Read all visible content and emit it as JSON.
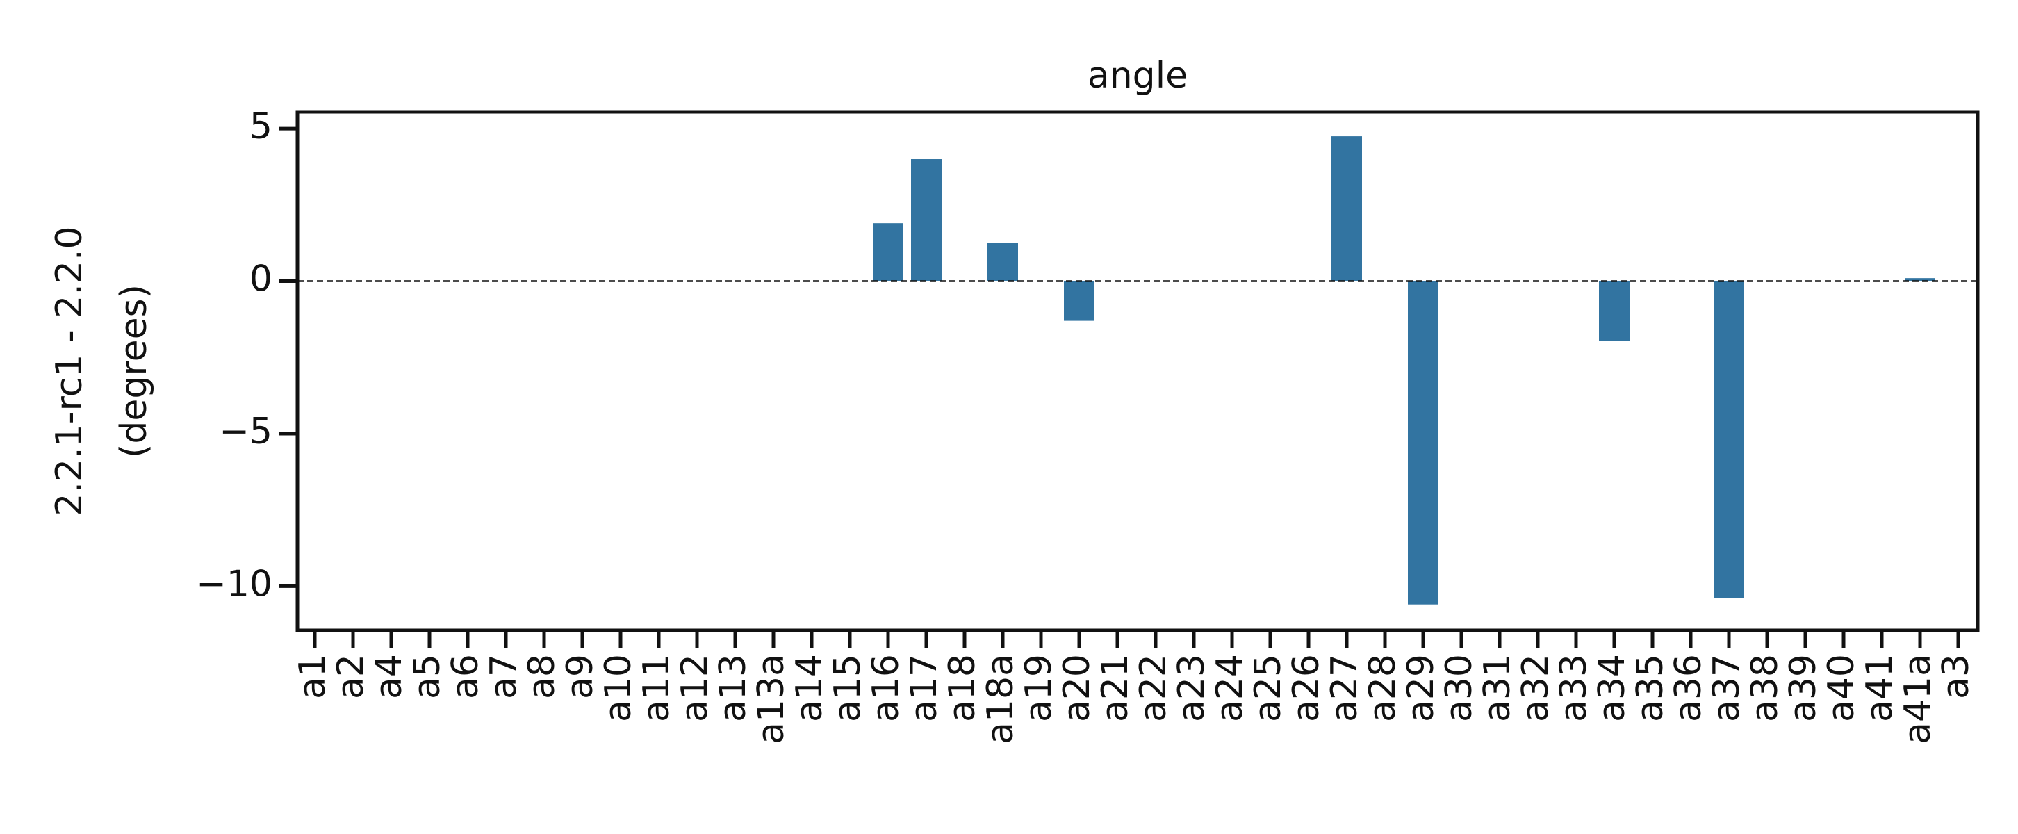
{
  "chart_data": {
    "type": "bar",
    "title": "angle",
    "ylabel": [
      "2.2.1-rc1 - 2.2.0",
      "(degrees)"
    ],
    "categories": [
      "a1",
      "a2",
      "a4",
      "a5",
      "a6",
      "a7",
      "a8",
      "a9",
      "a10",
      "a11",
      "a12",
      "a13",
      "a13a",
      "a14",
      "a15",
      "a16",
      "a17",
      "a18",
      "a18a",
      "a19",
      "a20",
      "a21",
      "a22",
      "a23",
      "a24",
      "a25",
      "a26",
      "a27",
      "a28",
      "a29",
      "a30",
      "a31",
      "a32",
      "a33",
      "a34",
      "a35",
      "a36",
      "a37",
      "a38",
      "a39",
      "a40",
      "a41",
      "a41a",
      "a3"
    ],
    "values": [
      0,
      0,
      0,
      0,
      0,
      0,
      0,
      0,
      0,
      0,
      0,
      0,
      0,
      0,
      0,
      1.9,
      4.0,
      0,
      1.25,
      0,
      -1.3,
      0,
      0,
      0,
      0,
      0,
      0,
      4.75,
      0,
      -10.6,
      0,
      0,
      0,
      0,
      -1.95,
      0,
      0,
      -10.4,
      0,
      0,
      0,
      0,
      0.1,
      0
    ],
    "color": "#3274a1",
    "ylim": [
      -11.45,
      5.55
    ],
    "yticks": [
      {
        "value": -10,
        "label": "−10"
      },
      {
        "value": -5,
        "label": "−5"
      },
      0,
      5
    ],
    "reference_line": 0
  }
}
